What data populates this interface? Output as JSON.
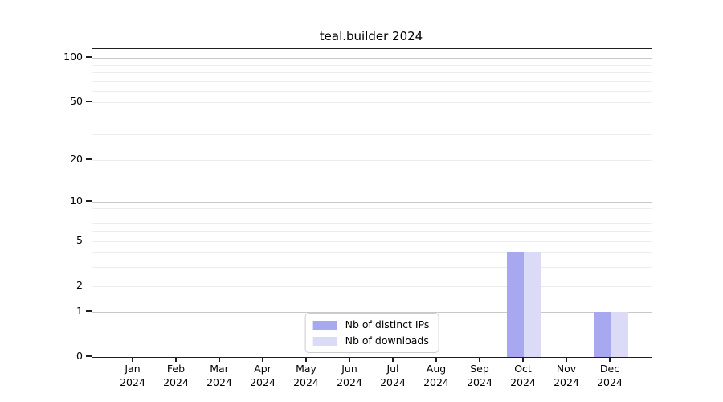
{
  "title": "teal.builder 2024",
  "chart_data": {
    "type": "bar",
    "title": "teal.builder 2024",
    "months": [
      "Jan",
      "Feb",
      "Mar",
      "Apr",
      "May",
      "Jun",
      "Jul",
      "Aug",
      "Sep",
      "Oct",
      "Nov",
      "Dec"
    ],
    "year_label": "2024",
    "series": [
      {
        "name": "Nb of distinct IPs",
        "color": "#a8a8f0",
        "values": [
          0,
          0,
          0,
          0,
          0,
          0,
          0,
          0,
          0,
          4,
          0,
          1
        ]
      },
      {
        "name": "Nb of downloads",
        "color": "#dbdbf8",
        "values": [
          0,
          0,
          0,
          0,
          0,
          0,
          0,
          0,
          0,
          4,
          0,
          1
        ]
      }
    ],
    "yscale": "log1p",
    "ylim": [
      0,
      115
    ],
    "yticks": [
      0,
      1,
      2,
      5,
      10,
      20,
      50,
      100
    ],
    "major_gridlines": [
      1,
      10,
      100
    ],
    "minor_gridlines": [
      2,
      3,
      4,
      5,
      6,
      7,
      8,
      9,
      20,
      30,
      40,
      50,
      60,
      70,
      80,
      90
    ],
    "grid": true,
    "legend_position": "lower center",
    "colors": {
      "axis": "#1f1f1f",
      "grid_major": "#c9c9c9",
      "grid_minor": "#ededed",
      "background": "#ffffff"
    }
  }
}
